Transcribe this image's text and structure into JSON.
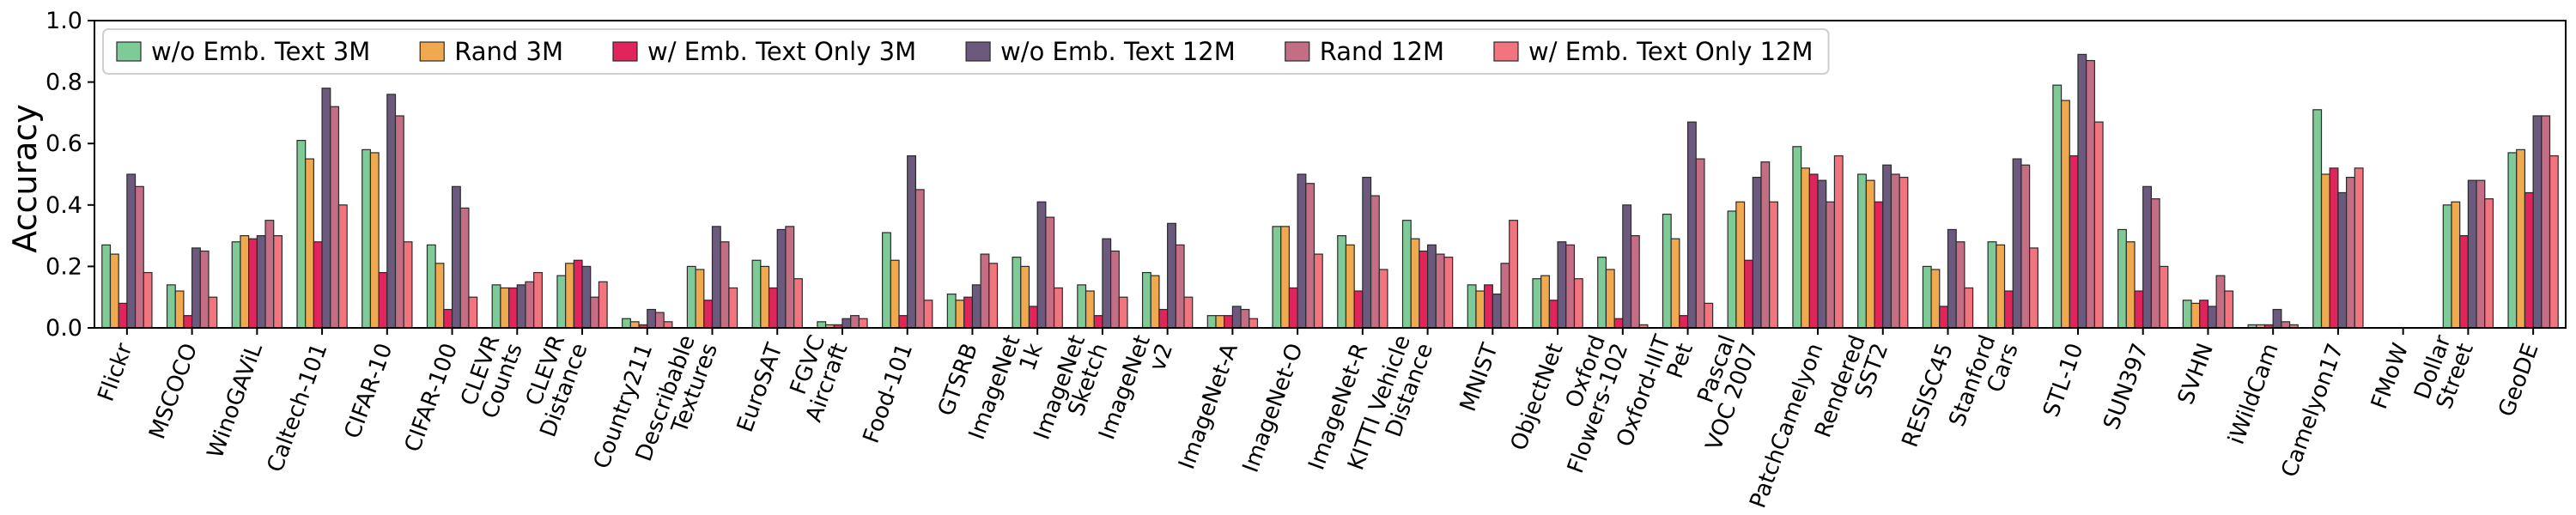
{
  "chart_data": {
    "type": "bar",
    "title": "",
    "xlabel": "",
    "ylabel": "Accuracy",
    "ylim": [
      0,
      1.0
    ],
    "yticks": [
      "0.0",
      "0.2",
      "0.4",
      "0.6",
      "0.8",
      "1.0"
    ],
    "grid": false,
    "legend": "top-left",
    "categories": [
      "Flickr",
      "MSCOCO",
      "WinoGAViL",
      "Caltech-101",
      "CIFAR-10",
      "CIFAR-100",
      "CLEVR\nCounts",
      "CLEVR\nDistance",
      "Country211",
      "Describable\nTextures",
      "EuroSAT",
      "FGVC\nAircraft",
      "Food-101",
      "GTSRB",
      "ImageNet\n1k",
      "ImageNet\nSketch",
      "ImageNet\nv2",
      "ImageNet-A",
      "ImageNet-O",
      "ImageNet-R",
      "KITTI Vehicle\nDistance",
      "MNIST",
      "ObjectNet",
      "Oxford\nFlowers-102",
      "Oxford-IIIT\nPet",
      "Pascal\nVOC 2007",
      "PatchCamelyon",
      "Rendered\nSST2",
      "RESISC45",
      "Stanford\nCars",
      "STL-10",
      "SUN397",
      "SVHN",
      "iWildCam",
      "Camelyon17",
      "FMoW",
      "Dollar\nStreet",
      "GeoDE"
    ],
    "series": [
      {
        "name": "w/o Emb. Text 3M",
        "color": "#7fcb97",
        "values": [
          0.27,
          0.14,
          0.28,
          0.61,
          0.58,
          0.27,
          0.14,
          0.17,
          0.03,
          0.2,
          0.22,
          0.02,
          0.31,
          0.11,
          0.23,
          0.14,
          0.18,
          0.04,
          0.33,
          0.3,
          0.35,
          0.14,
          0.16,
          0.23,
          0.37,
          0.38,
          0.59,
          0.5,
          0.2,
          0.28,
          0.79,
          0.32,
          0.09,
          0.01,
          0.71,
          0.0,
          0.4,
          0.57
        ]
      },
      {
        "name": "Rand 3M",
        "color": "#f0a94e",
        "values": [
          0.24,
          0.12,
          0.3,
          0.55,
          0.57,
          0.21,
          0.13,
          0.21,
          0.02,
          0.19,
          0.2,
          0.01,
          0.22,
          0.09,
          0.2,
          0.12,
          0.17,
          0.04,
          0.33,
          0.27,
          0.29,
          0.12,
          0.17,
          0.19,
          0.29,
          0.41,
          0.52,
          0.48,
          0.19,
          0.27,
          0.74,
          0.28,
          0.08,
          0.01,
          0.5,
          0.0,
          0.41,
          0.58
        ]
      },
      {
        "name": "w/ Emb. Text Only 3M",
        "color": "#e2245c",
        "values": [
          0.08,
          0.04,
          0.29,
          0.28,
          0.18,
          0.06,
          0.13,
          0.22,
          0.01,
          0.09,
          0.13,
          0.01,
          0.04,
          0.1,
          0.07,
          0.04,
          0.06,
          0.04,
          0.13,
          0.12,
          0.25,
          0.14,
          0.09,
          0.03,
          0.04,
          0.22,
          0.5,
          0.41,
          0.07,
          0.12,
          0.56,
          0.12,
          0.09,
          0.01,
          0.52,
          0.0,
          0.3,
          0.44
        ]
      },
      {
        "name": "w/o Emb. Text 12M",
        "color": "#6c5a7e",
        "values": [
          0.5,
          0.26,
          0.3,
          0.78,
          0.76,
          0.46,
          0.14,
          0.2,
          0.06,
          0.33,
          0.32,
          0.03,
          0.56,
          0.14,
          0.41,
          0.29,
          0.34,
          0.07,
          0.5,
          0.49,
          0.27,
          0.11,
          0.28,
          0.4,
          0.67,
          0.49,
          0.48,
          0.53,
          0.32,
          0.55,
          0.89,
          0.46,
          0.07,
          0.06,
          0.44,
          0.0,
          0.48,
          0.69
        ]
      },
      {
        "name": "Rand 12M",
        "color": "#c46e86",
        "values": [
          0.46,
          0.25,
          0.35,
          0.72,
          0.69,
          0.39,
          0.15,
          0.1,
          0.05,
          0.28,
          0.33,
          0.04,
          0.45,
          0.24,
          0.36,
          0.25,
          0.27,
          0.06,
          0.47,
          0.43,
          0.24,
          0.21,
          0.27,
          0.3,
          0.55,
          0.54,
          0.41,
          0.5,
          0.28,
          0.53,
          0.87,
          0.42,
          0.17,
          0.02,
          0.49,
          0.0,
          0.48,
          0.69
        ]
      },
      {
        "name": "w/ Emb. Text Only 12M",
        "color": "#f2747f",
        "values": [
          0.18,
          0.1,
          0.3,
          0.4,
          0.28,
          0.1,
          0.18,
          0.15,
          0.02,
          0.13,
          0.16,
          0.03,
          0.09,
          0.21,
          0.13,
          0.1,
          0.1,
          0.03,
          0.24,
          0.19,
          0.23,
          0.35,
          0.16,
          0.01,
          0.08,
          0.41,
          0.56,
          0.49,
          0.13,
          0.26,
          0.67,
          0.2,
          0.12,
          0.01,
          0.52,
          0.0,
          0.42,
          0.56
        ]
      }
    ]
  }
}
